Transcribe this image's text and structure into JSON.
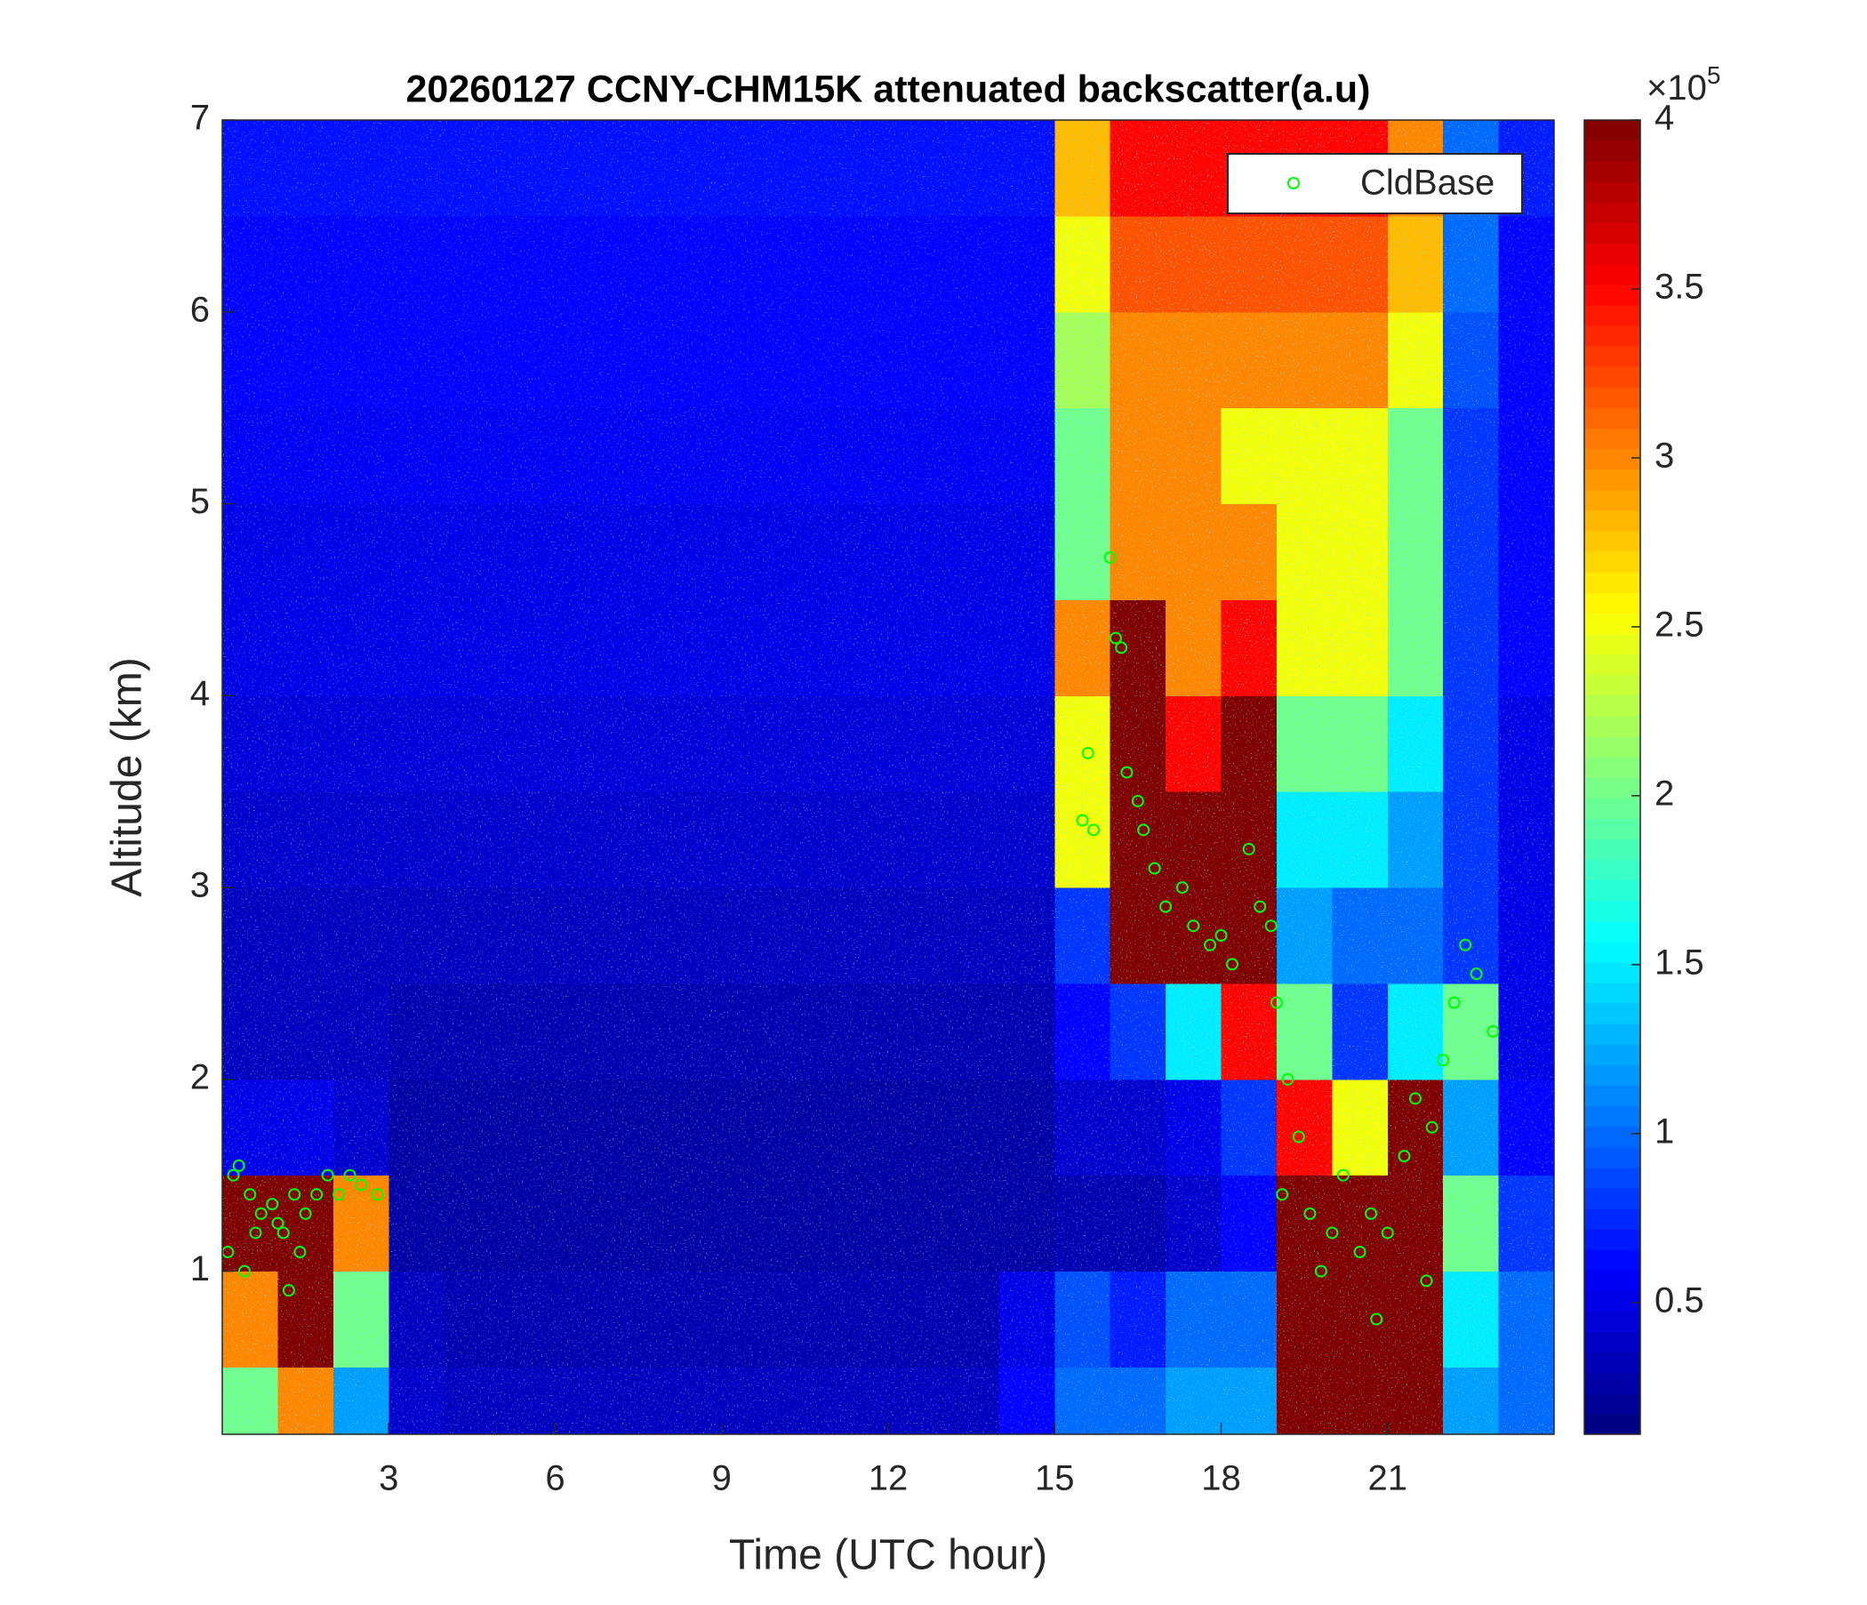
{
  "chart_data": {
    "type": "heatmap",
    "title": "20260127 CCNY-CHM15K attenuated backscatter(a.u)",
    "x_label": "Time (UTC hour)",
    "y_label": "Altitude (km)",
    "xlim": [
      0,
      24
    ],
    "xticks": [
      3,
      6,
      9,
      12,
      15,
      18,
      21
    ],
    "ylim": [
      0.15,
      7
    ],
    "yticks": [
      1,
      2,
      3,
      4,
      5,
      6,
      7
    ],
    "colormap": "jet",
    "clim": [
      0.11,
      4
    ],
    "cticks": [
      0.5,
      1,
      1.5,
      2,
      2.5,
      3,
      3.5,
      4
    ],
    "colorbar_multiplier": {
      "base": "×10",
      "exponent": "5"
    },
    "legend_position": "upper right",
    "time_edges": [
      0,
      1,
      2,
      3,
      4,
      5,
      6,
      7,
      8,
      9,
      10,
      11,
      12,
      13,
      14,
      15,
      16,
      17,
      18,
      19,
      20,
      21,
      22,
      23,
      24
    ],
    "altitude_edges": [
      0.15,
      0.5,
      1,
      1.5,
      2,
      2.5,
      3,
      3.5,
      4,
      4.5,
      5,
      5.5,
      6,
      6.5,
      7
    ],
    "z": [
      [
        2.0,
        3.0,
        1.2,
        0.4,
        0.35,
        0.35,
        0.35,
        0.35,
        0.35,
        0.35,
        0.35,
        0.35,
        0.35,
        0.35,
        0.6,
        1.0,
        1.0,
        1.2,
        1.2,
        4,
        4,
        4,
        1.2,
        1.0
      ],
      [
        3.0,
        4,
        2.0,
        0.35,
        0.3,
        0.3,
        0.3,
        0.3,
        0.3,
        0.3,
        0.3,
        0.3,
        0.3,
        0.3,
        0.5,
        0.9,
        0.7,
        1.0,
        1.0,
        4,
        4,
        4,
        1.5,
        1.0
      ],
      [
        4,
        4,
        3.0,
        0.25,
        0.25,
        0.25,
        0.25,
        0.25,
        0.25,
        0.25,
        0.25,
        0.25,
        0.25,
        0.25,
        0.25,
        0.3,
        0.3,
        0.4,
        0.6,
        4,
        4,
        4,
        2.0,
        0.8
      ],
      [
        0.5,
        0.5,
        0.4,
        0.25,
        0.25,
        0.25,
        0.25,
        0.25,
        0.25,
        0.25,
        0.25,
        0.25,
        0.25,
        0.25,
        0.25,
        0.4,
        0.4,
        0.5,
        0.8,
        3.5,
        2.5,
        4,
        1.2,
        0.6
      ],
      [
        0.35,
        0.35,
        0.35,
        0.3,
        0.3,
        0.3,
        0.3,
        0.3,
        0.3,
        0.3,
        0.3,
        0.3,
        0.3,
        0.3,
        0.3,
        0.6,
        0.8,
        1.5,
        3.5,
        2.0,
        0.8,
        1.5,
        2.0,
        0.5
      ],
      [
        0.35,
        0.35,
        0.35,
        0.35,
        0.35,
        0.35,
        0.35,
        0.35,
        0.35,
        0.35,
        0.35,
        0.35,
        0.35,
        0.35,
        0.35,
        0.8,
        4,
        4,
        4,
        1.2,
        1.0,
        1.0,
        0.8,
        0.5
      ],
      [
        0.4,
        0.4,
        0.4,
        0.4,
        0.4,
        0.4,
        0.4,
        0.4,
        0.4,
        0.4,
        0.4,
        0.4,
        0.4,
        0.4,
        0.4,
        2.5,
        4,
        4,
        4,
        1.5,
        1.5,
        1.2,
        0.8,
        0.5
      ],
      [
        0.45,
        0.45,
        0.45,
        0.45,
        0.45,
        0.45,
        0.45,
        0.45,
        0.45,
        0.45,
        0.45,
        0.45,
        0.45,
        0.45,
        0.45,
        2.5,
        4,
        3.5,
        4,
        2.0,
        2.0,
        1.5,
        0.8,
        0.5
      ],
      [
        0.5,
        0.5,
        0.5,
        0.5,
        0.5,
        0.5,
        0.5,
        0.5,
        0.5,
        0.5,
        0.5,
        0.5,
        0.5,
        0.5,
        0.5,
        3.0,
        4,
        3.0,
        3.5,
        2.5,
        2.5,
        2.0,
        0.8,
        0.6
      ],
      [
        0.5,
        0.5,
        0.5,
        0.5,
        0.5,
        0.5,
        0.5,
        0.5,
        0.5,
        0.5,
        0.5,
        0.5,
        0.5,
        0.5,
        0.5,
        2.0,
        3.0,
        3.0,
        3.0,
        2.5,
        2.5,
        2.0,
        0.8,
        0.6
      ],
      [
        0.55,
        0.55,
        0.55,
        0.55,
        0.55,
        0.55,
        0.55,
        0.55,
        0.55,
        0.55,
        0.55,
        0.55,
        0.55,
        0.55,
        0.55,
        2.0,
        3.0,
        3.0,
        2.5,
        2.5,
        2.5,
        2.0,
        0.8,
        0.6
      ],
      [
        0.6,
        0.6,
        0.6,
        0.6,
        0.6,
        0.6,
        0.6,
        0.6,
        0.6,
        0.6,
        0.6,
        0.6,
        0.6,
        0.6,
        0.6,
        2.2,
        3.0,
        3.0,
        3.0,
        3.0,
        3.0,
        2.5,
        0.9,
        0.6
      ],
      [
        0.6,
        0.6,
        0.6,
        0.6,
        0.6,
        0.6,
        0.6,
        0.6,
        0.6,
        0.6,
        0.6,
        0.6,
        0.6,
        0.6,
        0.6,
        2.5,
        3.2,
        3.2,
        3.2,
        3.2,
        3.2,
        2.8,
        1.0,
        0.6
      ],
      [
        0.65,
        0.65,
        0.65,
        0.65,
        0.65,
        0.65,
        0.65,
        0.65,
        0.65,
        0.65,
        0.65,
        0.65,
        0.65,
        0.65,
        0.65,
        2.8,
        3.5,
        3.5,
        3.5,
        3.5,
        3.5,
        3.0,
        1.0,
        0.7
      ]
    ],
    "series": [
      {
        "name": "CldBase",
        "type": "scatter",
        "color": "#00ff00",
        "x": [
          0.1,
          0.2,
          0.3,
          0.5,
          0.7,
          0.9,
          1.0,
          1.2,
          1.1,
          1.3,
          1.5,
          1.7,
          1.9,
          2.1,
          2.3,
          2.5,
          2.8,
          0.4,
          0.6,
          1.4,
          15.5,
          15.6,
          15.7,
          16.0,
          16.1,
          16.2,
          16.3,
          16.5,
          16.6,
          16.8,
          17.0,
          17.3,
          17.5,
          17.8,
          18.0,
          18.2,
          18.5,
          18.7,
          19.0,
          19.2,
          19.4,
          19.6,
          19.8,
          20.0,
          20.2,
          20.5,
          20.7,
          21.0,
          20.8,
          21.3,
          21.5,
          21.8,
          22.0,
          22.2,
          22.4,
          22.6,
          22.9,
          21.7,
          19.1,
          18.9
        ],
        "values": [
          1.1,
          1.5,
          1.55,
          1.4,
          1.3,
          1.35,
          1.25,
          0.9,
          1.2,
          1.4,
          1.3,
          1.4,
          1.5,
          1.4,
          1.5,
          1.45,
          1.4,
          1.0,
          1.2,
          1.1,
          3.35,
          3.7,
          3.3,
          4.72,
          4.3,
          4.25,
          3.6,
          3.45,
          3.3,
          3.1,
          2.9,
          3.0,
          2.8,
          2.7,
          2.75,
          2.6,
          3.2,
          2.9,
          2.4,
          2.0,
          1.7,
          1.3,
          1.0,
          1.2,
          1.5,
          1.1,
          1.3,
          1.2,
          0.75,
          1.6,
          1.9,
          1.75,
          2.1,
          2.4,
          2.7,
          2.55,
          2.25,
          0.95,
          1.4,
          2.8
        ]
      }
    ]
  }
}
